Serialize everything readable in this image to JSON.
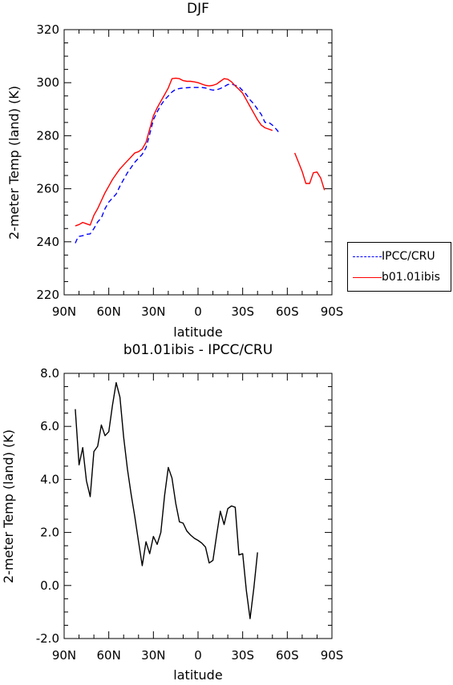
{
  "chart_data": [
    {
      "type": "line",
      "title": "DJF",
      "xlabel": "latitude",
      "ylabel": "2-meter Temp (land) (K)",
      "xlim": [
        -90,
        90
      ],
      "ylim": [
        220,
        320
      ],
      "x_ticks": [
        {
          "value": -90,
          "label": "90N"
        },
        {
          "value": -60,
          "label": "60N"
        },
        {
          "value": -30,
          "label": "30N"
        },
        {
          "value": 0,
          "label": "0"
        },
        {
          "value": 30,
          "label": "30S"
        },
        {
          "value": 60,
          "label": "60S"
        },
        {
          "value": 90,
          "label": "90S"
        }
      ],
      "y_ticks": [
        {
          "value": 220,
          "label": "220"
        },
        {
          "value": 240,
          "label": "240"
        },
        {
          "value": 260,
          "label": "260"
        },
        {
          "value": 280,
          "label": "280"
        },
        {
          "value": 300,
          "label": "300"
        },
        {
          "value": 320,
          "label": "320"
        }
      ],
      "grid": false,
      "legend_position": "right",
      "series": [
        {
          "name": "IPCC/CRU",
          "color": "#0000ff",
          "dash": "dashed",
          "points": [
            [
              -82.5,
              239.5
            ],
            [
              -80.5,
              242.0
            ],
            [
              -77.5,
              242.3
            ],
            [
              -75,
              242.8
            ],
            [
              -72.5,
              243.0
            ],
            [
              -70,
              245.0
            ],
            [
              -67.5,
              247.5
            ],
            [
              -65,
              249.0
            ],
            [
              -62.5,
              252.5
            ],
            [
              -60,
              255.0
            ],
            [
              -57.5,
              256.5
            ],
            [
              -55,
              258.0
            ],
            [
              -52.5,
              261.0
            ],
            [
              -50,
              263.5
            ],
            [
              -47.5,
              266.0
            ],
            [
              -45,
              268.0
            ],
            [
              -42.5,
              270.0
            ],
            [
              -40,
              271.5
            ],
            [
              -37.5,
              273.0
            ],
            [
              -35,
              275.5
            ],
            [
              -32.5,
              280.5
            ],
            [
              -30,
              286.0
            ],
            [
              -27.5,
              289.0
            ],
            [
              -25,
              291.5
            ],
            [
              -22.5,
              293.5
            ],
            [
              -20,
              295.0
            ],
            [
              -17.5,
              296.5
            ],
            [
              -15,
              297.5
            ],
            [
              -12.5,
              297.8
            ],
            [
              -10,
              298.0
            ],
            [
              -7.5,
              298.1
            ],
            [
              -5,
              298.2
            ],
            [
              -2.5,
              298.2
            ],
            [
              0,
              298.2
            ],
            [
              2.5,
              298.2
            ],
            [
              5,
              298.0
            ],
            [
              7.5,
              297.5
            ],
            [
              10,
              297.2
            ],
            [
              12.5,
              297.3
            ],
            [
              15,
              297.8
            ],
            [
              17.5,
              298.5
            ],
            [
              20,
              299.3
            ],
            [
              22.5,
              299.5
            ],
            [
              25,
              299.0
            ],
            [
              27.5,
              298.5
            ],
            [
              30,
              297.0
            ],
            [
              32.5,
              295.5
            ],
            [
              35,
              293.5
            ],
            [
              37.5,
              292.0
            ],
            [
              40,
              290.0
            ],
            [
              42.5,
              288.0
            ],
            [
              45,
              285.0
            ],
            [
              47.5,
              285.0
            ],
            [
              50,
              284.0
            ],
            [
              52.5,
              282.5
            ],
            [
              55,
              280.8
            ]
          ]
        },
        {
          "name": "b01.01ibis",
          "color": "#ff0000",
          "dash": "solid",
          "segments": [
            [
              [
                -82.5,
                246.0
              ],
              [
                -80,
                246.5
              ],
              [
                -77.5,
                247.3
              ],
              [
                -75,
                246.8
              ],
              [
                -72.5,
                246.3
              ],
              [
                -70,
                250.0
              ],
              [
                -67.5,
                252.5
              ],
              [
                -65,
                255.5
              ],
              [
                -62.5,
                258.5
              ],
              [
                -60,
                261.0
              ],
              [
                -57.5,
                263.5
              ],
              [
                -55,
                265.5
              ],
              [
                -52.5,
                267.5
              ],
              [
                -50,
                269.0
              ],
              [
                -47.5,
                270.5
              ],
              [
                -45,
                272.0
              ],
              [
                -42.5,
                273.5
              ],
              [
                -40,
                274.0
              ],
              [
                -37.5,
                275.0
              ],
              [
                -35,
                277.5
              ],
              [
                -32.5,
                282.5
              ],
              [
                -30,
                287.5
              ],
              [
                -27.5,
                290.5
              ],
              [
                -25,
                293.0
              ],
              [
                -22.5,
                295.5
              ],
              [
                -20,
                298.0
              ],
              [
                -17.5,
                301.5
              ],
              [
                -15,
                301.7
              ],
              [
                -12.5,
                301.5
              ],
              [
                -10,
                300.8
              ],
              [
                -7.5,
                300.5
              ],
              [
                -5,
                300.5
              ],
              [
                -2.5,
                300.3
              ],
              [
                0,
                300.0
              ],
              [
                2.5,
                299.5
              ],
              [
                5,
                299.0
              ],
              [
                7.5,
                298.8
              ],
              [
                10,
                299.0
              ],
              [
                12.5,
                299.5
              ],
              [
                15,
                300.5
              ],
              [
                17.5,
                301.5
              ],
              [
                20,
                301.3
              ],
              [
                22.5,
                300.3
              ],
              [
                25,
                298.8
              ],
              [
                27.5,
                297.5
              ],
              [
                30,
                296.0
              ],
              [
                32.5,
                293.5
              ],
              [
                35,
                291.0
              ],
              [
                37.5,
                288.5
              ],
              [
                40,
                286.0
              ],
              [
                42.5,
                284.0
              ],
              [
                45,
                283.0
              ],
              [
                47.5,
                282.5
              ],
              [
                50,
                282.0
              ]
            ],
            [
              [
                65,
                273.5
              ],
              [
                67.5,
                270.0
              ],
              [
                70,
                266.5
              ],
              [
                72.5,
                262.0
              ],
              [
                75,
                262.0
              ],
              [
                77.5,
                266.0
              ],
              [
                80,
                266.3
              ],
              [
                82.5,
                264.0
              ],
              [
                85,
                259.5
              ]
            ]
          ]
        }
      ]
    },
    {
      "type": "line",
      "title": "b01.01ibis - IPCC/CRU",
      "xlabel": "latitude",
      "ylabel": "2-meter Temp (land) (K)",
      "xlim": [
        -90,
        90
      ],
      "ylim": [
        -2,
        8
      ],
      "x_ticks": [
        {
          "value": -90,
          "label": "90N"
        },
        {
          "value": -60,
          "label": "60N"
        },
        {
          "value": -30,
          "label": "30N"
        },
        {
          "value": 0,
          "label": "0"
        },
        {
          "value": 30,
          "label": "30S"
        },
        {
          "value": 60,
          "label": "60S"
        },
        {
          "value": 90,
          "label": "90S"
        }
      ],
      "y_ticks": [
        {
          "value": -2,
          "label": "-2.0"
        },
        {
          "value": 0,
          "label": "0.0"
        },
        {
          "value": 2,
          "label": "2.0"
        },
        {
          "value": 4,
          "label": "4.0"
        },
        {
          "value": 6,
          "label": "6.0"
        },
        {
          "value": 8,
          "label": "8.0"
        }
      ],
      "grid": false,
      "series": [
        {
          "name": "",
          "color": "#000000",
          "dash": "solid",
          "points": [
            [
              -82.5,
              6.65
            ],
            [
              -80,
              4.55
            ],
            [
              -77.5,
              5.2
            ],
            [
              -75,
              3.95
            ],
            [
              -72.5,
              3.35
            ],
            [
              -70,
              5.05
            ],
            [
              -67.5,
              5.25
            ],
            [
              -65,
              6.05
            ],
            [
              -62.5,
              5.65
            ],
            [
              -60,
              5.8
            ],
            [
              -57.5,
              6.8
            ],
            [
              -55,
              7.65
            ],
            [
              -52.5,
              7.1
            ],
            [
              -50,
              5.6
            ],
            [
              -47.5,
              4.4
            ],
            [
              -45,
              3.45
            ],
            [
              -42.5,
              2.6
            ],
            [
              -40,
              1.65
            ],
            [
              -37.5,
              0.75
            ],
            [
              -35,
              1.65
            ],
            [
              -32.5,
              1.2
            ],
            [
              -30,
              1.85
            ],
            [
              -27.5,
              1.55
            ],
            [
              -25,
              2.0
            ],
            [
              -22.5,
              3.4
            ],
            [
              -20,
              4.45
            ],
            [
              -17.5,
              4.05
            ],
            [
              -15,
              3.1
            ],
            [
              -12.5,
              2.4
            ],
            [
              -10,
              2.35
            ],
            [
              -7.5,
              2.05
            ],
            [
              -5,
              1.9
            ],
            [
              -2.5,
              1.78
            ],
            [
              0,
              1.7
            ],
            [
              2.5,
              1.6
            ],
            [
              5,
              1.45
            ],
            [
              7.5,
              0.85
            ],
            [
              10,
              0.95
            ],
            [
              12.5,
              1.9
            ],
            [
              15,
              2.8
            ],
            [
              17.5,
              2.3
            ],
            [
              20,
              2.9
            ],
            [
              22.5,
              3.0
            ],
            [
              25,
              2.95
            ],
            [
              27.5,
              1.15
            ],
            [
              30,
              1.2
            ],
            [
              32.5,
              -0.2
            ],
            [
              35,
              -1.25
            ],
            [
              37.5,
              -0.1
            ],
            [
              40,
              1.25
            ]
          ]
        }
      ]
    }
  ]
}
